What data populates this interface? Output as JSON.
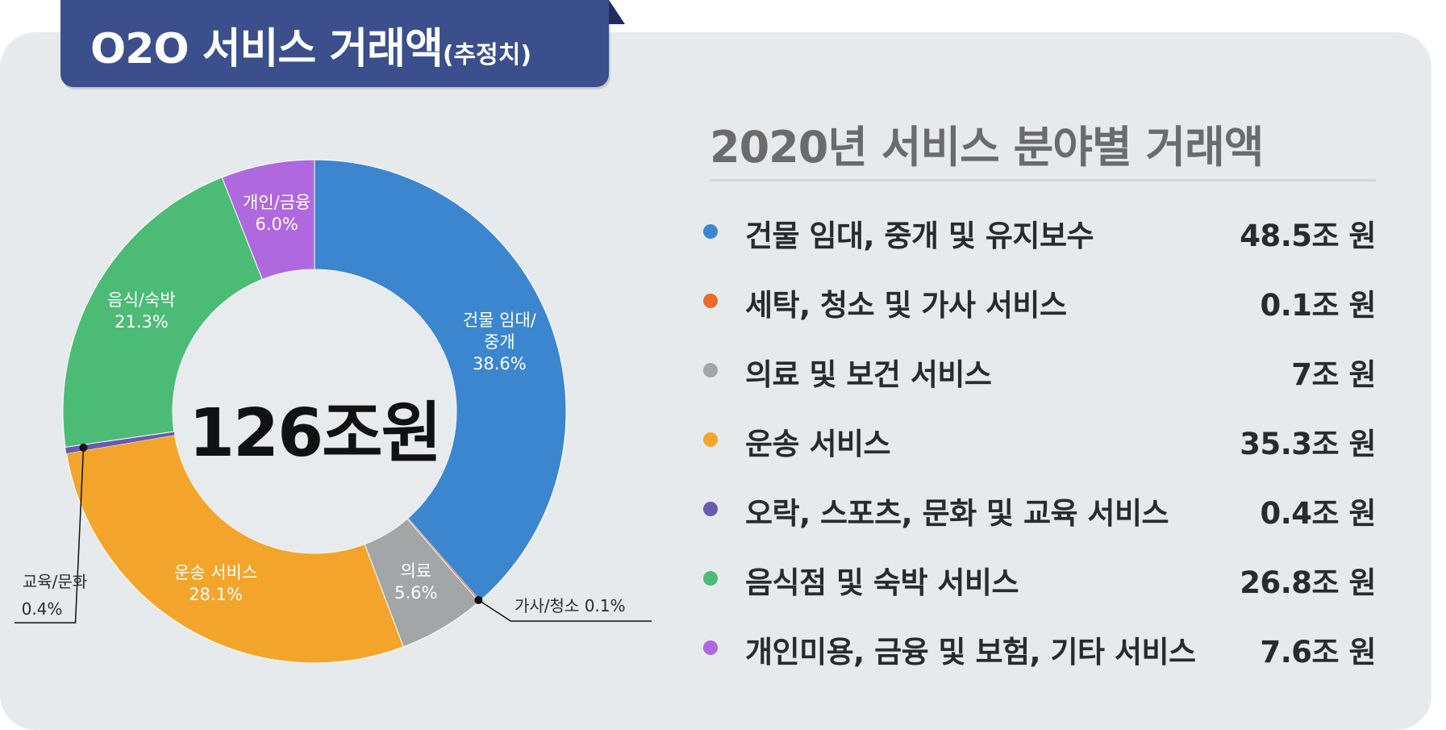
{
  "header": {
    "title_main": "O2O 서비스 거래액",
    "title_small": "(추정치)"
  },
  "chart_data": {
    "type": "pie",
    "center_label": "126조원",
    "title": "2020년 서비스 분야별 거래액",
    "slices": [
      {
        "name": "건물 임대, 중개 및 유지보수",
        "chart_label_lines": [
          "건물 임대/",
          "중개"
        ],
        "percent_label": "38.6%",
        "percent": 38.6,
        "value": 48.5,
        "value_label": "48.5조 원",
        "color": "#3b86cf"
      },
      {
        "name": "세탁, 청소 및 가사 서비스",
        "chart_label_lines": [
          "가사/청소 0.1%"
        ],
        "percent_label": "",
        "percent": 0.1,
        "value": 0.1,
        "value_label": "0.1조 원",
        "color": "#ea6b2e"
      },
      {
        "name": "의료 및 보건 서비스",
        "chart_label_lines": [
          "의료"
        ],
        "percent_label": "5.6%",
        "percent": 5.6,
        "value": 7,
        "value_label": "7조 원",
        "color": "#a3a6a7"
      },
      {
        "name": "운송 서비스",
        "chart_label_lines": [
          "운송 서비스"
        ],
        "percent_label": "28.1%",
        "percent": 28.1,
        "value": 35.3,
        "value_label": "35.3조 원",
        "color": "#f3a52b"
      },
      {
        "name": "오락, 스포츠, 문화 및 교육 서비스",
        "chart_label_lines": [
          "교육/문화"
        ],
        "percent_label": "0.4%",
        "percent": 0.4,
        "value": 0.4,
        "value_label": "0.4조 원",
        "color": "#6a5aae"
      },
      {
        "name": "음식점 및 숙박 서비스",
        "chart_label_lines": [
          "음식/숙박"
        ],
        "percent_label": "21.3%",
        "percent": 21.3,
        "value": 26.8,
        "value_label": "26.8조 원",
        "color": "#4cbb76"
      },
      {
        "name": "개인미용, 금융 및 보험, 기타 서비스",
        "chart_label_lines": [
          "개인/금융"
        ],
        "percent_label": "6.0%",
        "percent": 6.0,
        "value": 7.6,
        "value_label": "7.6조 원",
        "color": "#b068de"
      }
    ]
  }
}
